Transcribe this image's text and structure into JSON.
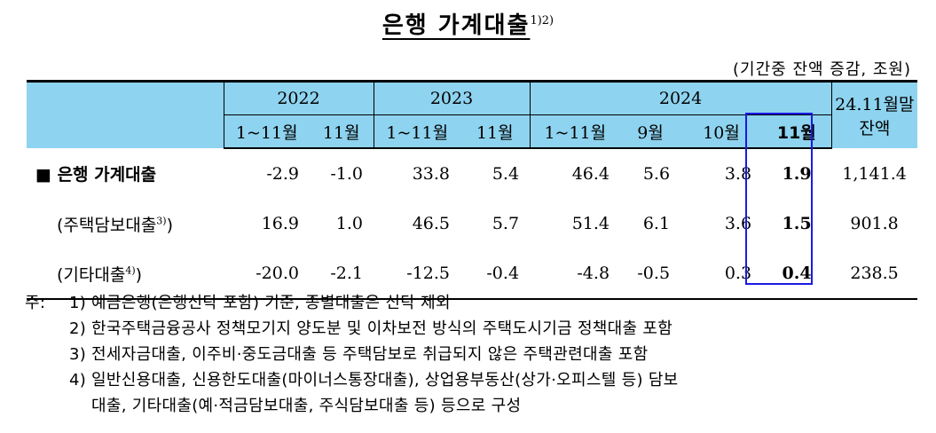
{
  "title": "은행 가계대출",
  "title_sup": "1)2)",
  "unit_note": "(기간중 잔액 증감, 조원)",
  "header": {
    "years": [
      "2022",
      "2023",
      "2024"
    ],
    "balance_label": "24.11월말",
    "balance_label2": "잔액",
    "periods": [
      "1~11월",
      "11월",
      "1~11월",
      "11월",
      "1~11월",
      "9월",
      "10월",
      "11월"
    ]
  },
  "rows": [
    {
      "label": "■ 은행 가계대출",
      "sup": "",
      "suffix": "",
      "values": [
        "-2.9",
        "-1.0",
        "33.8",
        "5.4",
        "46.4",
        "5.6",
        "3.8",
        "1.9",
        "1,141.4"
      ]
    },
    {
      "label": "(주택담보대출",
      "sup": "3)",
      "suffix": ")",
      "values": [
        "16.9",
        "1.0",
        "46.5",
        "5.7",
        "51.4",
        "6.1",
        "3.6",
        "1.5",
        "901.8"
      ]
    },
    {
      "label": "(기타대출",
      "sup": "4)",
      "suffix": ")",
      "values": [
        "-20.0",
        "-2.1",
        "-12.5",
        "-0.4",
        "-4.8",
        "-0.5",
        "0.3",
        "0.4",
        "238.5"
      ]
    }
  ],
  "notes": {
    "prefix": "주:",
    "items": [
      {
        "num": "1)",
        "text": "예금은행(은행신탁 포함) 기준, 종별대출은 신탁 제외"
      },
      {
        "num": "2)",
        "text": "한국주택금융공사 정책모기지 양도분 및 이차보전 방식의 주택도시기금 정책대출 포함"
      },
      {
        "num": "3)",
        "text": "전세자금대출, 이주비·중도금대출 등 주택담보로 취급되지 않은 주택관련대출 포함"
      },
      {
        "num": "4)",
        "text": "일반신용대출, 신용한도대출(마이너스통장대출), 상업용부동산(상가·오피스텔 등) 담보"
      }
    ],
    "continuation": "대출, 기타대출(예·적금담보대출, 주식담보대출 등) 등으로 구성"
  },
  "colors": {
    "header_bg": "#8ed3ef",
    "highlight_border": "#1a1ae6"
  }
}
